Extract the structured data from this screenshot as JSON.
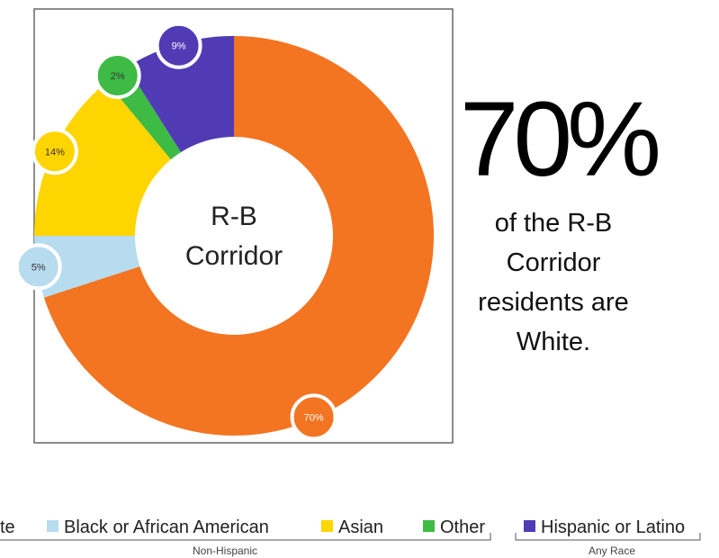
{
  "chart_data": {
    "type": "pie",
    "center_label_line1": "R-B",
    "center_label_line2": "Corridor",
    "slices": [
      {
        "name": "White",
        "value": 70,
        "label": "70%",
        "color": "#F37421"
      },
      {
        "name": "Black or African American",
        "value": 5,
        "label": "5%",
        "color": "#B7DCEF"
      },
      {
        "name": "Asian",
        "value": 14,
        "label": "14%",
        "color": "#FFD500"
      },
      {
        "name": "Other",
        "value": 2,
        "label": "2%",
        "color": "#3DBB45"
      },
      {
        "name": "Hispanic or Latino",
        "value": 9,
        "label": "9%",
        "color": "#503BB5"
      }
    ],
    "legend_groups": [
      {
        "label": "Non-Hispanic"
      },
      {
        "label": "Any Race"
      }
    ]
  },
  "stat": {
    "value": "70%",
    "line1": "of the R-B",
    "line2": "Corridor",
    "line3": "residents are",
    "line4": "White."
  },
  "legend": {
    "item0": "te",
    "item1": "Black or African American",
    "item2": "Asian",
    "item3": "Other",
    "item4": "Hispanic or Latino",
    "group1": "Non-Hispanic",
    "group2": "Any Race"
  }
}
